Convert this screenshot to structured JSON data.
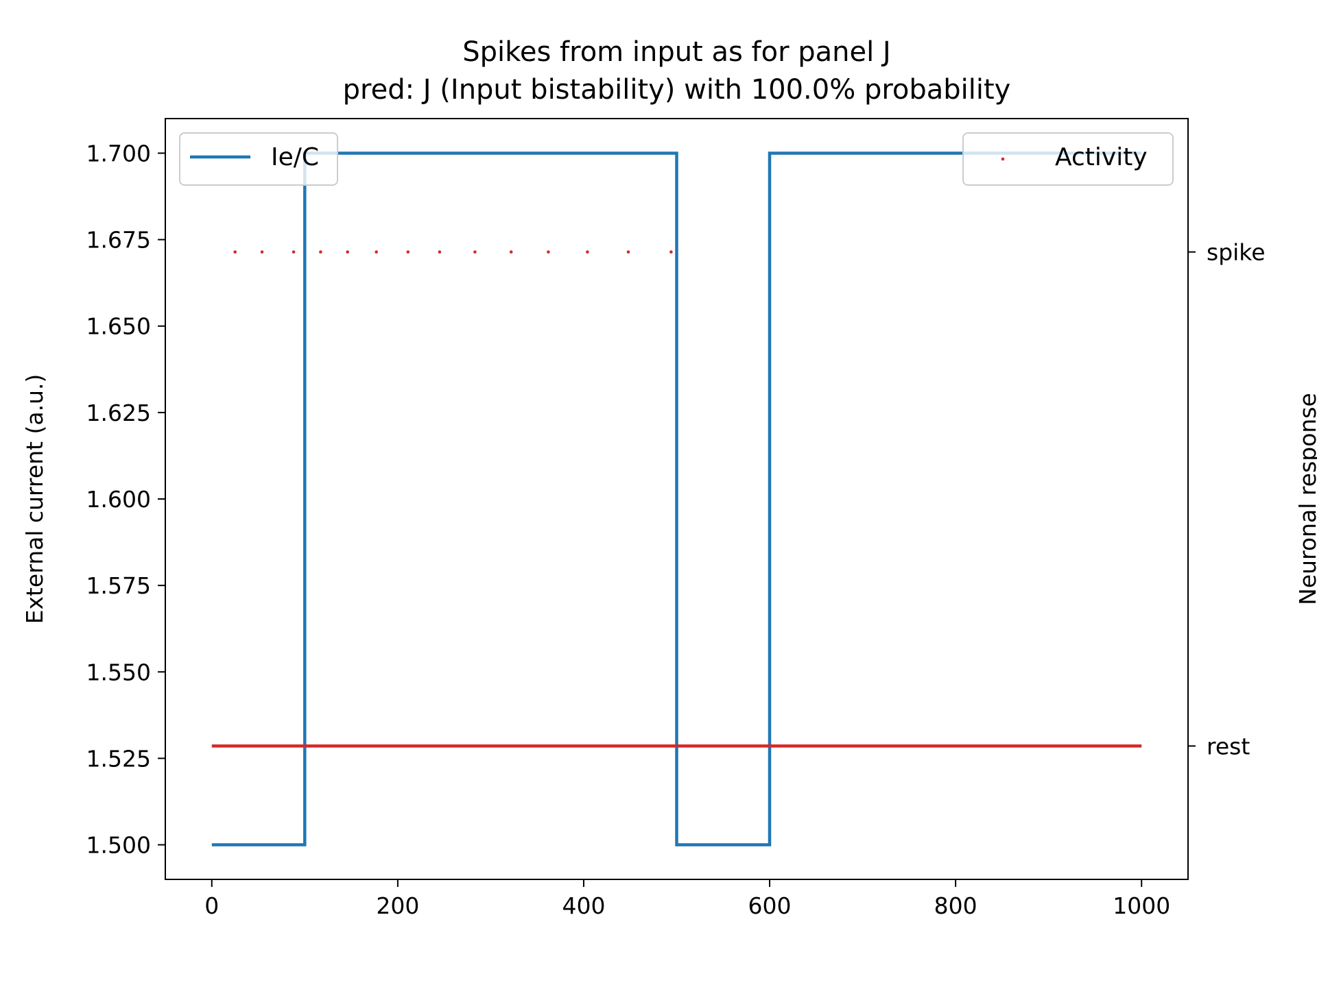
{
  "chart_data": {
    "type": "line",
    "title": "Spikes from input as for panel J",
    "subtitle": "pred: J (Input bistability) with 100.0% probability",
    "xlabel": "",
    "ylabel": "External current (a.u.)",
    "y2label": "Neuronal response",
    "xlim": [
      -50,
      1050
    ],
    "ylim": [
      1.49,
      1.71
    ],
    "xticks": [
      0,
      200,
      400,
      600,
      800,
      1000
    ],
    "xtick_labels": [
      "0",
      "200",
      "400",
      "600",
      "800",
      "1000"
    ],
    "yticks": [
      1.5,
      1.525,
      1.55,
      1.575,
      1.6,
      1.625,
      1.65,
      1.675,
      1.7
    ],
    "ytick_labels": [
      "1.500",
      "1.525",
      "1.550",
      "1.575",
      "1.600",
      "1.625",
      "1.650",
      "1.675",
      "1.700"
    ],
    "y2ticks": [
      0,
      1
    ],
    "y2tick_labels": [
      "rest",
      "spike"
    ],
    "y2lim": [
      -0.27,
      1.27
    ],
    "grid": false,
    "series": [
      {
        "name": "Ie/C",
        "axis": "left",
        "style": "line",
        "color": "#1f77b4",
        "x": [
          0,
          100,
          100,
          500,
          500,
          600,
          600,
          1000
        ],
        "y": [
          1.5,
          1.5,
          1.7,
          1.7,
          1.5,
          1.5,
          1.7,
          1.7
        ]
      },
      {
        "name": "Activity",
        "axis": "right",
        "style": "points",
        "color": "#d62728",
        "rest_range": [
          0,
          1000
        ],
        "spike_x": [
          25,
          54,
          88,
          117,
          146,
          177,
          211,
          245,
          283,
          322,
          362,
          404,
          448,
          494
        ]
      }
    ],
    "legends": [
      {
        "series": "Ie/C",
        "placement": "upper left"
      },
      {
        "series": "Activity",
        "placement": "upper right"
      }
    ]
  }
}
